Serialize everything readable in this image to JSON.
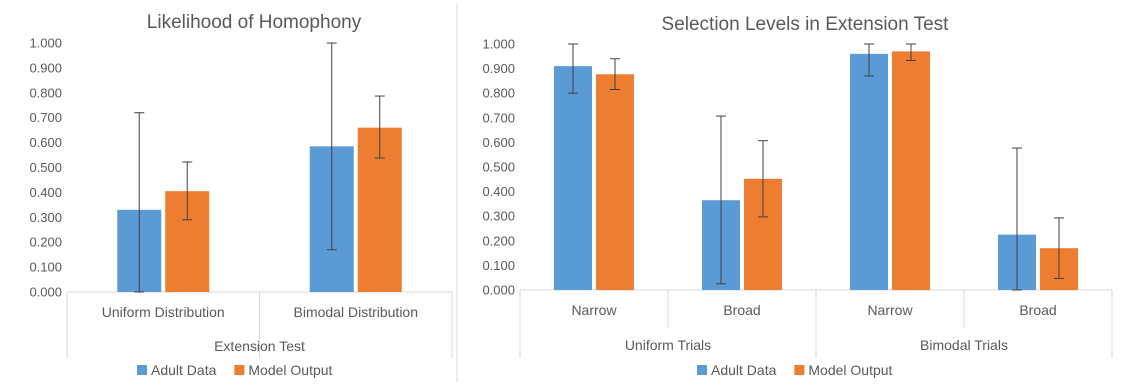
{
  "colors": {
    "adult": "#5B9BD5",
    "model": "#ED7D31",
    "axis": "#D9D9D9",
    "error": "#404040",
    "text": "#595959"
  },
  "chart_data": [
    {
      "type": "bar",
      "title": "Likelihood of Homophony",
      "ylim": [
        0,
        1
      ],
      "ytick_step": 0.1,
      "ytick_labels": [
        "0.000",
        "0.100",
        "0.200",
        "0.300",
        "0.400",
        "0.500",
        "0.600",
        "0.700",
        "0.800",
        "0.900",
        "1.000"
      ],
      "categories": [
        "Uniform Distribution",
        "Bimodal Distribution"
      ],
      "group_label": "Extension Test",
      "series": [
        {
          "name": "Adult Data",
          "values": [
            0.33,
            0.585
          ],
          "error_low": [
            0.0,
            0.17
          ],
          "error_high": [
            0.72,
            1.0
          ]
        },
        {
          "name": "Model Output",
          "values": [
            0.405,
            0.66
          ],
          "error_low": [
            0.29,
            0.538
          ],
          "error_high": [
            0.522,
            0.787
          ]
        }
      ],
      "legend": [
        "Adult Data",
        "Model Output"
      ],
      "legend_position": "bottom"
    },
    {
      "type": "bar",
      "title": "Selection Levels in Extension Test",
      "ylim": [
        0,
        1
      ],
      "ytick_step": 0.1,
      "ytick_labels": [
        "0.000",
        "0.100",
        "0.200",
        "0.300",
        "0.400",
        "0.500",
        "0.600",
        "0.700",
        "0.800",
        "0.900",
        "1.000"
      ],
      "categories": [
        "Narrow",
        "Broad",
        "Narrow",
        "Broad"
      ],
      "groups": [
        "Uniform Trials",
        "Bimodal Trials"
      ],
      "series": [
        {
          "name": "Adult Data",
          "values": [
            0.91,
            0.365,
            0.96,
            0.225
          ],
          "error_low": [
            0.8,
            0.025,
            0.87,
            0.0
          ],
          "error_high": [
            1.0,
            0.707,
            1.0,
            0.577
          ]
        },
        {
          "name": "Model Output",
          "values": [
            0.877,
            0.452,
            0.97,
            0.17
          ],
          "error_low": [
            0.815,
            0.297,
            0.933,
            0.047
          ],
          "error_high": [
            0.94,
            0.607,
            1.0,
            0.293
          ]
        }
      ],
      "legend": [
        "Adult Data",
        "Model Output"
      ],
      "legend_position": "bottom"
    }
  ]
}
